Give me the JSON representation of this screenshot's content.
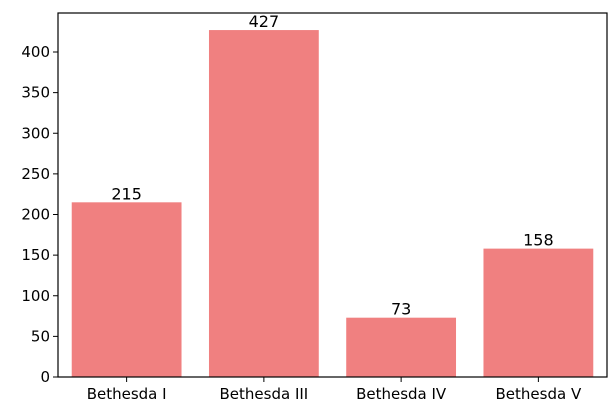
{
  "chart_data": {
    "type": "bar",
    "title": "",
    "xlabel": "",
    "ylabel": "",
    "categories": [
      "Bethesda I",
      "Bethesda III",
      "Bethesda IV",
      "Bethesda V"
    ],
    "values": [
      215,
      427,
      73,
      158
    ],
    "data_labels": [
      "215",
      "427",
      "73",
      "158"
    ],
    "ylim": [
      0,
      448
    ],
    "yticks": [
      0,
      50,
      100,
      150,
      200,
      250,
      300,
      350,
      400
    ],
    "grid": false,
    "legend": "none",
    "bar_color": "#f08080"
  }
}
